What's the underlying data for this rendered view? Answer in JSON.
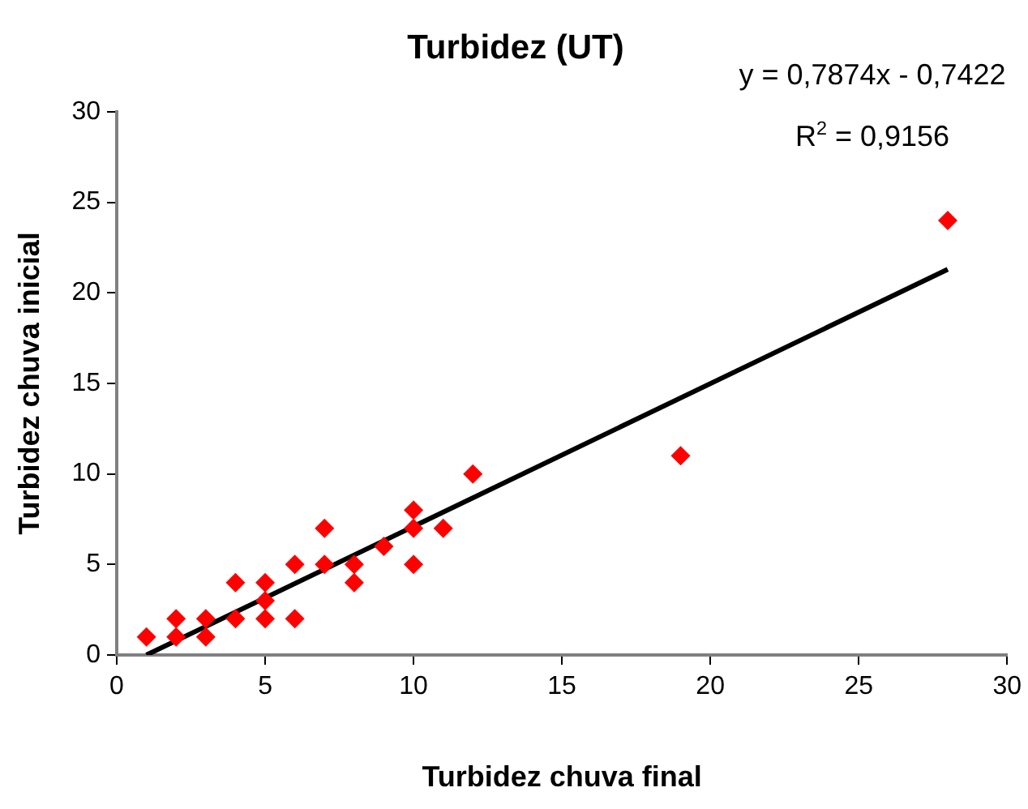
{
  "chart_data": {
    "type": "scatter",
    "title": "Turbidez (UT)",
    "xlabel": "Turbidez chuva final",
    "ylabel": "Turbidez chuva inicial",
    "annotations": [
      "y = 0,7874x - 0,7422",
      "R$^{2}$ = 0,9156"
    ],
    "xlim": [
      0,
      30
    ],
    "xticks": [
      0,
      5,
      10,
      15,
      20,
      25,
      30
    ],
    "ylim": [
      0,
      30
    ],
    "yticks": [
      0,
      5,
      10,
      15,
      20,
      25,
      30
    ],
    "grid": false,
    "legend": false,
    "marker": "diamond",
    "series": [
      {
        "color": "#ff0000",
        "x": [
          1,
          2,
          2,
          3,
          3,
          4,
          4,
          5,
          5,
          5,
          6,
          6,
          7,
          7,
          8,
          8,
          9,
          10,
          10,
          10,
          11,
          12,
          19,
          28
        ],
        "values": [
          1,
          2,
          1,
          2,
          1,
          4,
          2,
          4,
          3,
          2,
          5,
          2,
          7,
          5,
          5,
          4,
          6,
          8,
          7,
          5,
          7,
          10,
          11,
          24
        ]
      },
      {
        "type": "line",
        "color": "#000000",
        "marker": "none",
        "x": [
          1,
          28
        ],
        "values": [
          0,
          21.3
        ]
      }
    ]
  }
}
